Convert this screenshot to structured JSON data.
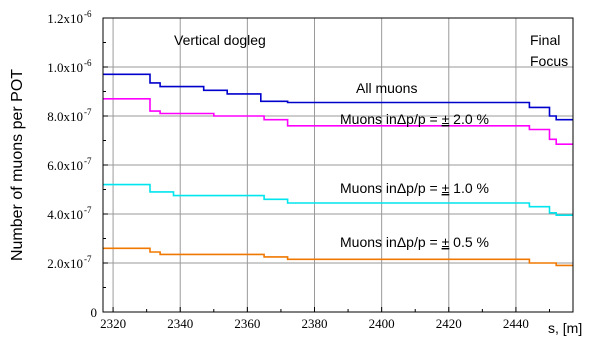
{
  "chart_data": {
    "type": "line",
    "xlabel": "s, [m]",
    "ylabel": "Number of muons per POT",
    "xlim": [
      2317,
      2457
    ],
    "ylim": [
      0,
      1.2e-06
    ],
    "x_ticks": [
      "2320",
      "2340",
      "2360",
      "2380",
      "2400",
      "2420",
      "2440"
    ],
    "y_ticks": [
      {
        "mant": "0",
        "exp": ""
      },
      {
        "mant": "2.0x10",
        "exp": "-7"
      },
      {
        "mant": "4.0x10",
        "exp": "-7"
      },
      {
        "mant": "6.0x10",
        "exp": "-7"
      },
      {
        "mant": "8.0x10",
        "exp": "-7"
      },
      {
        "mant": "1.0x10",
        "exp": "-6"
      },
      {
        "mant": "1.2x10",
        "exp": "-6"
      }
    ],
    "grid": true,
    "annotations": {
      "region1": "Vertical dogleg",
      "region2_line1": "Final",
      "region2_line2": "Focus"
    },
    "series": [
      {
        "name": "All muons",
        "color": "#0000cc",
        "x": [
          2317,
          2331,
          2331,
          2334,
          2334,
          2347,
          2347,
          2354,
          2354,
          2364,
          2364,
          2372,
          2372,
          2444,
          2444,
          2450,
          2450,
          2452,
          2452,
          2457
        ],
        "y": [
          9.7e-07,
          9.7e-07,
          9.35e-07,
          9.35e-07,
          9.2e-07,
          9.2e-07,
          9.05e-07,
          9.05e-07,
          8.9e-07,
          8.9e-07,
          8.6e-07,
          8.6e-07,
          8.55e-07,
          8.55e-07,
          8.35e-07,
          8.35e-07,
          8e-07,
          8e-07,
          7.85e-07,
          7.85e-07
        ]
      },
      {
        "name": "Muons in Δp/p = ± 2.0 %",
        "label_pre": "Muons in",
        "label_frac": "Δp/p = ",
        "label_pm": "±",
        "label_val": " 2.0 %",
        "color": "#ff00ff",
        "x": [
          2317,
          2331,
          2331,
          2334,
          2334,
          2350,
          2350,
          2365,
          2365,
          2372,
          2372,
          2444,
          2444,
          2450,
          2450,
          2452,
          2452,
          2457
        ],
        "y": [
          8.7e-07,
          8.7e-07,
          8.2e-07,
          8.2e-07,
          8.1e-07,
          8.1e-07,
          8e-07,
          8e-07,
          7.85e-07,
          7.85e-07,
          7.6e-07,
          7.6e-07,
          7.45e-07,
          7.45e-07,
          7.05e-07,
          7.05e-07,
          6.85e-07,
          6.85e-07
        ]
      },
      {
        "name": "Muons in Δp/p = ± 1.0 %",
        "label_pre": "Muons in",
        "label_frac": "Δp/p = ",
        "label_pm": "±",
        "label_val": " 1.0 %",
        "color": "#00e5ee",
        "x": [
          2317,
          2331,
          2331,
          2338,
          2338,
          2365,
          2365,
          2372,
          2372,
          2444,
          2444,
          2450,
          2450,
          2452,
          2452,
          2457
        ],
        "y": [
          5.2e-07,
          5.2e-07,
          4.9e-07,
          4.9e-07,
          4.75e-07,
          4.75e-07,
          4.6e-07,
          4.6e-07,
          4.45e-07,
          4.45e-07,
          4.3e-07,
          4.3e-07,
          4.05e-07,
          4.05e-07,
          3.95e-07,
          3.95e-07
        ]
      },
      {
        "name": "Muons in Δp/p = ± 0.5 %",
        "label_pre": "Muons in",
        "label_frac": "Δp/p = ",
        "label_pm": "±",
        "label_val": " 0.5 %",
        "color": "#f07800",
        "x": [
          2317,
          2331,
          2331,
          2334,
          2334,
          2365,
          2365,
          2372,
          2372,
          2444,
          2444,
          2452,
          2452,
          2457
        ],
        "y": [
          2.6e-07,
          2.6e-07,
          2.45e-07,
          2.45e-07,
          2.35e-07,
          2.35e-07,
          2.25e-07,
          2.25e-07,
          2.15e-07,
          2.15e-07,
          2e-07,
          2e-07,
          1.9e-07,
          1.9e-07
        ]
      }
    ]
  }
}
